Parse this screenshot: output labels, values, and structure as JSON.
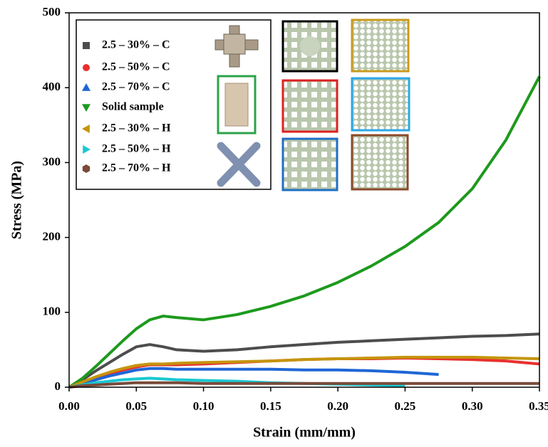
{
  "chart_data": {
    "type": "line",
    "xlabel": "Strain (mm/mm)",
    "ylabel": "Stress (MPa)",
    "x": [
      0,
      0.01,
      0.02,
      0.03,
      0.04,
      0.05,
      0.06,
      0.07,
      0.08,
      0.1,
      0.125,
      0.15,
      0.175,
      0.2,
      0.225,
      0.25,
      0.275,
      0.3,
      0.325,
      0.35
    ],
    "xlim": [
      0,
      0.35
    ],
    "xticks": [
      {
        "value": 0,
        "label": "0.00"
      },
      {
        "value": 0.05,
        "label": "0.05"
      },
      {
        "value": 0.1,
        "label": "0.10"
      },
      {
        "value": 0.15,
        "label": "0.15"
      },
      {
        "value": 0.2,
        "label": "0.20"
      },
      {
        "value": 0.25,
        "label": "0.25"
      },
      {
        "value": 0.3,
        "label": "0.30"
      },
      {
        "value": 0.35,
        "label": "0.35"
      }
    ],
    "ylim": [
      0,
      500
    ],
    "yticks": [
      0,
      100,
      200,
      300,
      400,
      500
    ],
    "series": [
      {
        "name": "2.5 – 30% – C",
        "color": "#4d4d4d",
        "marker": "square",
        "values": [
          0,
          10,
          22,
          33,
          44,
          54,
          57,
          54,
          50,
          48,
          50,
          54,
          57,
          60,
          62,
          64,
          66,
          68,
          69,
          71
        ]
      },
      {
        "name": "2.5 – 50% – C",
        "color": "#e8302f",
        "marker": "circle",
        "values": [
          0,
          6,
          12,
          18,
          23,
          27,
          30,
          30,
          30,
          31,
          33,
          35,
          37,
          38,
          38,
          39,
          38,
          37,
          35,
          31
        ]
      },
      {
        "name": "2.5 – 70% – C",
        "color": "#1f66d6",
        "marker": "triangle-up",
        "values": [
          0,
          5,
          10,
          15,
          19,
          23,
          25,
          25,
          24,
          24,
          24,
          24,
          23,
          23,
          22,
          20,
          17,
          null,
          null,
          null
        ]
      },
      {
        "name": "Solid sample",
        "color": "#1d9a1d",
        "marker": "triangle-down",
        "values": [
          0,
          12,
          28,
          45,
          62,
          78,
          90,
          95,
          93,
          90,
          97,
          108,
          122,
          140,
          162,
          188,
          220,
          265,
          330,
          415
        ]
      },
      {
        "name": "2.5 – 30% – H",
        "color": "#c4950c",
        "marker": "triangle-left",
        "values": [
          0,
          7,
          14,
          20,
          25,
          29,
          31,
          31,
          32,
          33,
          34,
          35,
          37,
          38,
          39,
          40,
          40,
          40,
          39,
          38
        ]
      },
      {
        "name": "2.5 – 50% – H",
        "color": "#19c8d2",
        "marker": "triangle-right",
        "values": [
          0,
          3,
          6,
          8,
          10,
          11,
          12,
          11,
          10,
          9,
          8,
          6,
          5,
          4,
          3,
          2,
          null,
          null,
          null,
          null
        ]
      },
      {
        "name": "2.5 – 70% – H",
        "color": "#7a4a3a",
        "marker": "hexagon",
        "values": [
          0,
          2,
          3,
          4,
          5,
          6,
          6,
          6,
          6,
          5,
          5,
          5,
          5,
          5,
          5,
          5,
          5,
          5,
          5,
          5
        ]
      }
    ]
  }
}
